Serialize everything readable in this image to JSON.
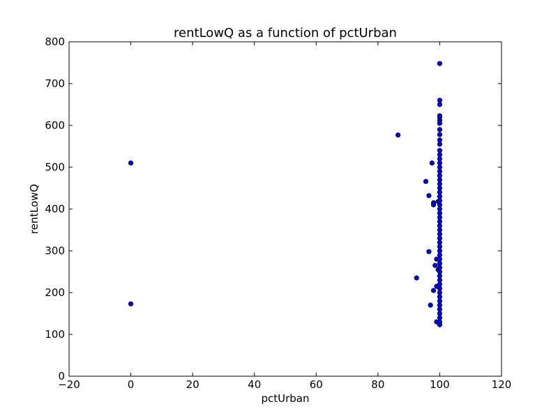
{
  "chart_data": {
    "type": "scatter",
    "title": "rentLowQ as a function of pctUrban",
    "x_label": "pctUrban",
    "y_label": "rentLowQ",
    "series": [
      {
        "color": "#0000ff",
        "x": [
          0,
          0,
          86.5,
          92.5,
          95.5,
          96.5,
          96.5,
          97,
          97.5,
          98,
          98,
          98,
          98.5,
          99,
          99,
          99,
          99.5,
          99.5,
          100,
          100,
          100,
          100,
          100,
          100,
          100,
          100,
          100,
          100,
          100,
          100,
          100,
          100,
          100,
          100,
          100,
          100,
          100,
          100,
          100,
          100,
          100,
          100,
          100,
          100,
          100,
          100,
          100,
          100,
          100,
          100,
          100,
          100,
          100,
          100,
          100,
          100,
          100,
          100,
          100,
          100,
          100,
          100,
          100,
          100,
          100,
          100,
          100,
          100,
          100,
          100,
          100,
          100
        ],
        "values": [
          510,
          173,
          577,
          235,
          466,
          432,
          298,
          170,
          510,
          415,
          410,
          205,
          265,
          130,
          215,
          280,
          418,
          255,
          123,
          130,
          140,
          150,
          160,
          170,
          180,
          190,
          200,
          210,
          220,
          230,
          240,
          250,
          260,
          270,
          280,
          290,
          300,
          310,
          320,
          330,
          340,
          350,
          360,
          370,
          380,
          390,
          400,
          410,
          420,
          430,
          440,
          450,
          460,
          470,
          480,
          490,
          500,
          510,
          520,
          530,
          540,
          555,
          565,
          578,
          590,
          605,
          612,
          620,
          623,
          650,
          660,
          748
        ]
      }
    ],
    "xlim": [
      -20,
      120
    ],
    "xticks": [
      {
        "value": -20,
        "label": "−20"
      },
      0,
      20,
      40,
      60,
      80,
      100,
      120
    ],
    "ylim": [
      0,
      800
    ],
    "yticks": [
      0,
      100,
      200,
      300,
      400,
      500,
      600,
      700,
      800
    ]
  }
}
